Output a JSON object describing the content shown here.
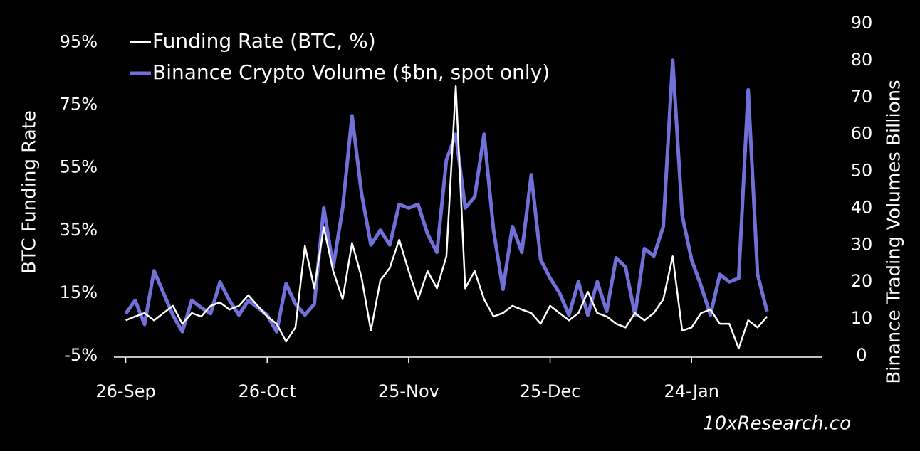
{
  "chart_data": {
    "type": "line",
    "legend": "top-left",
    "y_label": "BTC Funding Rate",
    "y2_label": "Binance Trading  Volumes Billions",
    "watermark": "10xResearch.co",
    "x": [
      0,
      2,
      4,
      6,
      8,
      10,
      12,
      14,
      16,
      18,
      20,
      22,
      24,
      26,
      28,
      30,
      32,
      34,
      36,
      38,
      40,
      42,
      44,
      46,
      48,
      50,
      52,
      54,
      56,
      58,
      60,
      62,
      64,
      66,
      68,
      70,
      72,
      74,
      76,
      78,
      80,
      82,
      84,
      86,
      88,
      90,
      92,
      94,
      96,
      98,
      100,
      102,
      104,
      106,
      108,
      110,
      112,
      114,
      116,
      118,
      120,
      122,
      124,
      126,
      128,
      130,
      132,
      134,
      136
    ],
    "xlim": [
      -2.5,
      147
    ],
    "xticks": [
      {
        "value": 0,
        "label": "26-Sep"
      },
      {
        "value": 30,
        "label": "26-Oct"
      },
      {
        "value": 60,
        "label": "25-Nov"
      },
      {
        "value": 90,
        "label": "25-Dec"
      },
      {
        "value": 120,
        "label": "24-Jan"
      }
    ],
    "ylim": [
      -5,
      101
    ],
    "yticks": [
      {
        "value": -5,
        "label": "-5%"
      },
      {
        "value": 15,
        "label": "15%"
      },
      {
        "value": 35,
        "label": "35%"
      },
      {
        "value": 55,
        "label": "55%"
      },
      {
        "value": 75,
        "label": "75%"
      },
      {
        "value": 95,
        "label": "95%"
      }
    ],
    "y2lim": [
      0,
      90
    ],
    "y2ticks": [
      0,
      10,
      20,
      30,
      40,
      50,
      60,
      70,
      80,
      90
    ],
    "series": [
      {
        "name": "Funding Rate (BTC, %)",
        "color": "#ffffff",
        "values": [
          6.3,
          7.5,
          8.6,
          6.3,
          8.6,
          10.9,
          5.2,
          8.6,
          7.5,
          10.9,
          12,
          9.7,
          10.9,
          14.3,
          10.9,
          7.5,
          5.2,
          -0.5,
          4,
          30,
          16.5,
          36,
          22,
          13,
          31,
          20,
          3,
          19,
          23,
          32,
          22,
          13,
          22,
          16.5,
          26.7,
          81,
          16.5,
          22,
          13,
          7.5,
          8.6,
          10.9,
          9.7,
          8.6,
          5.2,
          10.9,
          8.6,
          6.3,
          8.6,
          15.4,
          8.6,
          7.5,
          5.2,
          4,
          8.6,
          6.3,
          8.6,
          13,
          26.7,
          3,
          4,
          8.6,
          9.7,
          5.2,
          5.2,
          -2.7,
          6.3,
          4,
          7.5
        ]
      },
      {
        "name": "Binance Crypto Volume ($bn, spot only)",
        "color": "#7070d8",
        "axis": "y2",
        "values": [
          11.4,
          15,
          8.5,
          23,
          17,
          11,
          6.5,
          15,
          13,
          11.4,
          20,
          15,
          11,
          15,
          13,
          11,
          6.5,
          19.5,
          14,
          11,
          14,
          40,
          24,
          40,
          65,
          44,
          30,
          34,
          30,
          41,
          40,
          41,
          33,
          28,
          53,
          60,
          40,
          43,
          60,
          34,
          18,
          35,
          28,
          49,
          26,
          21,
          17,
          11,
          20,
          11,
          20,
          12,
          26.5,
          24,
          11,
          29,
          27,
          35,
          80,
          38,
          26,
          19,
          11,
          22,
          20,
          21,
          72,
          22,
          12
        ]
      }
    ]
  }
}
